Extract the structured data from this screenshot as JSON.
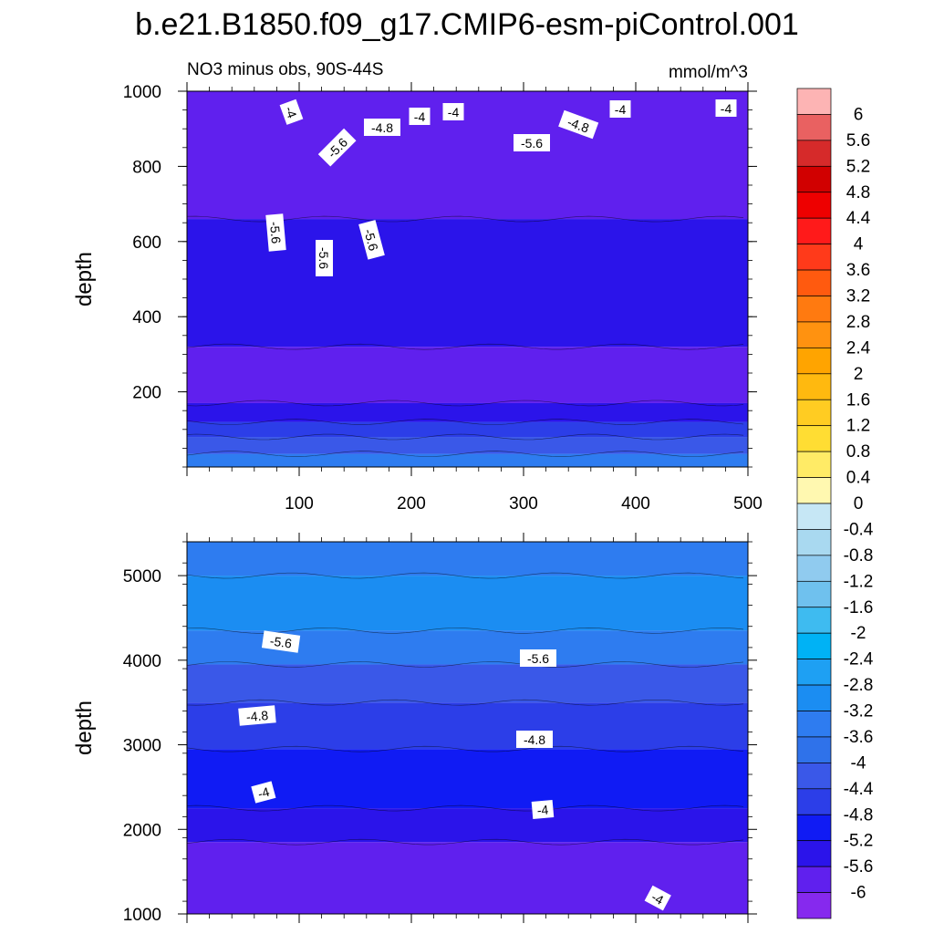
{
  "title": "b.e21.B1850.f09_g17.CMIP6-esm-piControl.001",
  "subtitle_left": "NO3 minus obs, 90S-44S",
  "units": "mmol/m^3",
  "chart_data": [
    {
      "type": "heatmap",
      "panel": "top",
      "ylabel": "depth",
      "xlabel": "",
      "xlim": [
        0,
        500
      ],
      "ylim": [
        1000,
        0
      ],
      "xticks": [
        100,
        200,
        300,
        400,
        500
      ],
      "yticks": [
        200,
        400,
        600,
        800,
        1000
      ],
      "bands": [
        {
          "from": 0,
          "to": 35,
          "value": -3.6
        },
        {
          "from": 35,
          "to": 80,
          "value": -4.4
        },
        {
          "from": 80,
          "to": 120,
          "value": -4.8
        },
        {
          "from": 120,
          "to": 170,
          "value": -5.6
        },
        {
          "from": 170,
          "to": 320,
          "value": -6.0
        },
        {
          "from": 320,
          "to": 660,
          "value": -5.6
        },
        {
          "from": 660,
          "to": 1000,
          "value": -6.0
        }
      ],
      "contour_labels": [
        "-4",
        "-4",
        "-4",
        "-4",
        "-4",
        "-4.8",
        "-4.8",
        "-5.6",
        "-5.6",
        "-5.6",
        "-5.6",
        "-5.6"
      ]
    },
    {
      "type": "heatmap",
      "panel": "bottom",
      "ylabel": "depth",
      "xlabel": "",
      "xlim": [
        0,
        500
      ],
      "ylim": [
        5400,
        1000
      ],
      "yticks": [
        1000,
        2000,
        3000,
        4000,
        5000
      ],
      "bands": [
        {
          "from": 1000,
          "to": 1850,
          "value": -6.0
        },
        {
          "from": 1850,
          "to": 2250,
          "value": -5.6
        },
        {
          "from": 2250,
          "to": 2950,
          "value": -5.2
        },
        {
          "from": 2950,
          "to": 3500,
          "value": -4.8
        },
        {
          "from": 3500,
          "to": 3950,
          "value": -4.4
        },
        {
          "from": 3950,
          "to": 4350,
          "value": -3.6
        },
        {
          "from": 4350,
          "to": 5000,
          "value": -3.2
        },
        {
          "from": 5000,
          "to": 5400,
          "value": -3.6
        }
      ],
      "contour_labels": [
        "-5.6",
        "-5.6",
        "-4.8",
        "-4.8",
        "-4",
        "-4",
        "-4"
      ]
    }
  ],
  "colorbar": {
    "levels": [
      "6",
      "5.6",
      "5.2",
      "4.8",
      "4.4",
      "4",
      "3.6",
      "3.2",
      "2.8",
      "2.4",
      "2",
      "1.6",
      "1.2",
      "0.8",
      "0.4",
      "0",
      "-0.4",
      "-0.8",
      "-1.2",
      "-1.6",
      "-2",
      "-2.4",
      "-2.8",
      "-3.2",
      "-3.6",
      "-4",
      "-4.4",
      "-4.8",
      "-5.2",
      "-5.6",
      "-6"
    ],
    "colors": [
      "#fdb4b4",
      "#e96161",
      "#d62a2a",
      "#d10000",
      "#ee0000",
      "#ff1a1a",
      "#ff3a1a",
      "#ff5a0f",
      "#ff7a10",
      "#ff9210",
      "#ffa400",
      "#ffb90f",
      "#ffcc22",
      "#ffdd33",
      "#ffeb66",
      "#fff8b0",
      "#c6e7f5",
      "#a9d9f0",
      "#90cbef",
      "#6fc1ee",
      "#3ebbf0",
      "#00b2f5",
      "#1ea0f3",
      "#1b8df2",
      "#2e7cf0",
      "#2f72ea",
      "#3a58e8",
      "#2c3ee8",
      "#101bf4",
      "#2b14ea",
      "#6020ee",
      "#8629ee"
    ]
  }
}
